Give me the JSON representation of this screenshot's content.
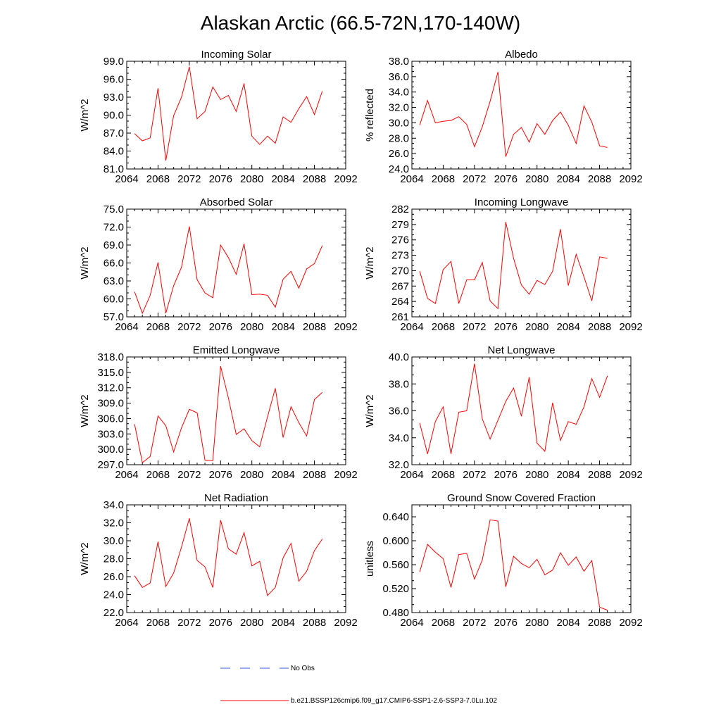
{
  "title": "Alaskan Arctic (66.5-72N,170-140W)",
  "legend": {
    "obs_label": "No Obs",
    "obs_color": "#3355dd",
    "model_label": "b.e21.BSSP126cmip6.f09_g17.CMIP6-SSP1-2.6-SSP3-7.0Lu.102",
    "model_color": "#ff0000"
  },
  "chart_data": [
    {
      "type": "line",
      "title": "Incoming Solar",
      "ylabel": "W/m^2",
      "xlim": [
        2064,
        2092
      ],
      "xticks": [
        "2064",
        "2068",
        "2072",
        "2076",
        "2080",
        "2084",
        "2088",
        "2092"
      ],
      "ylim": [
        81,
        99
      ],
      "yticks": [
        "81.0",
        "84.0",
        "87.0",
        "90.0",
        "93.0",
        "96.0",
        "99.0"
      ],
      "x": [
        2065,
        2066,
        2067,
        2068,
        2069,
        2070,
        2071,
        2072,
        2073,
        2074,
        2075,
        2076,
        2077,
        2078,
        2079,
        2080,
        2081,
        2082,
        2083,
        2084,
        2085,
        2086,
        2087,
        2088,
        2089
      ],
      "series": [
        {
          "values": [
            86.9,
            85.7,
            86.2,
            94.5,
            82.4,
            89.9,
            93.0,
            98.1,
            89.4,
            90.6,
            94.7,
            92.6,
            93.3,
            90.6,
            95.3,
            86.5,
            85.1,
            86.5,
            85.3,
            89.7,
            88.8,
            91.1,
            93.1,
            90.1,
            94.0
          ]
        }
      ]
    },
    {
      "type": "line",
      "title": "Albedo",
      "ylabel": "% reflected",
      "xlim": [
        2064,
        2092
      ],
      "xticks": [
        "2064",
        "2068",
        "2072",
        "2076",
        "2080",
        "2084",
        "2088",
        "2092"
      ],
      "ylim": [
        24,
        38
      ],
      "yticks": [
        "24.0",
        "26.0",
        "28.0",
        "30.0",
        "32.0",
        "34.0",
        "36.0",
        "38.0"
      ],
      "x": [
        2065,
        2066,
        2067,
        2068,
        2069,
        2070,
        2071,
        2072,
        2073,
        2074,
        2075,
        2076,
        2077,
        2078,
        2079,
        2080,
        2081,
        2082,
        2083,
        2084,
        2085,
        2086,
        2087,
        2088,
        2089
      ],
      "series": [
        {
          "values": [
            29.7,
            32.9,
            30.0,
            30.2,
            30.3,
            30.8,
            29.8,
            26.9,
            29.5,
            32.8,
            36.6,
            25.6,
            28.5,
            29.4,
            27.5,
            29.9,
            28.5,
            30.3,
            31.4,
            29.7,
            27.3,
            32.2,
            30.1,
            27.0,
            26.8
          ]
        }
      ]
    },
    {
      "type": "line",
      "title": "Absorbed Solar",
      "ylabel": "W/m^2",
      "xlim": [
        2064,
        2092
      ],
      "xticks": [
        "2064",
        "2068",
        "2072",
        "2076",
        "2080",
        "2084",
        "2088",
        "2092"
      ],
      "ylim": [
        57,
        75
      ],
      "yticks": [
        "57.0",
        "60.0",
        "63.0",
        "66.0",
        "69.0",
        "72.0",
        "75.0"
      ],
      "x": [
        2065,
        2066,
        2067,
        2068,
        2069,
        2070,
        2071,
        2072,
        2073,
        2074,
        2075,
        2076,
        2077,
        2078,
        2079,
        2080,
        2081,
        2082,
        2083,
        2084,
        2085,
        2086,
        2087,
        2088,
        2089
      ],
      "series": [
        {
          "values": [
            61.2,
            57.6,
            60.6,
            66.1,
            57.6,
            62.2,
            65.3,
            72.1,
            63.2,
            61.0,
            60.2,
            69.0,
            66.9,
            64.1,
            69.2,
            60.7,
            60.8,
            60.6,
            58.6,
            63.3,
            64.6,
            61.8,
            65.0,
            65.9,
            68.9
          ]
        }
      ]
    },
    {
      "type": "line",
      "title": "Incoming Longwave",
      "ylabel": "W/m^2",
      "xlim": [
        2064,
        2092
      ],
      "xticks": [
        "2064",
        "2068",
        "2072",
        "2076",
        "2080",
        "2084",
        "2088",
        "2092"
      ],
      "ylim": [
        261,
        282
      ],
      "yticks": [
        "261",
        "264",
        "267",
        "270",
        "273",
        "276",
        "279",
        "282"
      ],
      "x": [
        2065,
        2066,
        2067,
        2068,
        2069,
        2070,
        2071,
        2072,
        2073,
        2074,
        2075,
        2076,
        2077,
        2078,
        2079,
        2080,
        2081,
        2082,
        2083,
        2084,
        2085,
        2086,
        2087,
        2088,
        2089
      ],
      "series": [
        {
          "values": [
            269.9,
            264.6,
            263.6,
            270.2,
            271.8,
            263.6,
            268.2,
            268.2,
            271.6,
            264.1,
            262.6,
            279.5,
            272.4,
            267.2,
            265.4,
            268.1,
            267.3,
            269.9,
            278.1,
            267.1,
            273.2,
            268.8,
            264.1,
            272.7,
            272.4
          ]
        }
      ]
    },
    {
      "type": "line",
      "title": "Emitted Longwave",
      "ylabel": "W/m^2",
      "xlim": [
        2064,
        2092
      ],
      "xticks": [
        "2064",
        "2068",
        "2072",
        "2076",
        "2080",
        "2084",
        "2088",
        "2092"
      ],
      "ylim": [
        297,
        318
      ],
      "yticks": [
        "297.0",
        "300.0",
        "303.0",
        "306.0",
        "309.0",
        "312.0",
        "315.0",
        "318.0"
      ],
      "x": [
        2065,
        2066,
        2067,
        2068,
        2069,
        2070,
        2071,
        2072,
        2073,
        2074,
        2075,
        2076,
        2077,
        2078,
        2079,
        2080,
        2081,
        2082,
        2083,
        2084,
        2085,
        2086,
        2087,
        2088,
        2089
      ],
      "series": [
        {
          "values": [
            304.9,
            297.4,
            298.6,
            306.5,
            304.6,
            299.5,
            304.2,
            307.8,
            307.1,
            297.9,
            297.8,
            316.2,
            310.0,
            302.9,
            304.0,
            301.7,
            300.5,
            306.3,
            311.9,
            302.3,
            308.3,
            305.2,
            302.6,
            309.7,
            311.1
          ]
        }
      ]
    },
    {
      "type": "line",
      "title": "Net Longwave",
      "ylabel": "W/m^2",
      "xlim": [
        2064,
        2092
      ],
      "xticks": [
        "2064",
        "2068",
        "2072",
        "2076",
        "2080",
        "2084",
        "2088",
        "2092"
      ],
      "ylim": [
        32,
        40
      ],
      "yticks": [
        "32.0",
        "34.0",
        "36.0",
        "38.0",
        "40.0"
      ],
      "x": [
        2065,
        2066,
        2067,
        2068,
        2069,
        2070,
        2071,
        2072,
        2073,
        2074,
        2075,
        2076,
        2077,
        2078,
        2079,
        2080,
        2081,
        2082,
        2083,
        2084,
        2085,
        2086,
        2087,
        2088,
        2089
      ],
      "series": [
        {
          "values": [
            35.1,
            32.8,
            35.2,
            36.3,
            32.8,
            35.9,
            36.0,
            39.5,
            35.4,
            33.9,
            35.3,
            36.7,
            37.7,
            35.6,
            38.5,
            33.6,
            33.0,
            36.6,
            33.8,
            35.2,
            35.0,
            36.3,
            38.4,
            37.0,
            38.6
          ]
        }
      ]
    },
    {
      "type": "line",
      "title": "Net Radiation",
      "ylabel": "W/m^2",
      "xlim": [
        2064,
        2092
      ],
      "xticks": [
        "2064",
        "2068",
        "2072",
        "2076",
        "2080",
        "2084",
        "2088",
        "2092"
      ],
      "ylim": [
        22,
        34
      ],
      "yticks": [
        "22.0",
        "24.0",
        "26.0",
        "28.0",
        "30.0",
        "32.0",
        "34.0"
      ],
      "x": [
        2065,
        2066,
        2067,
        2068,
        2069,
        2070,
        2071,
        2072,
        2073,
        2074,
        2075,
        2076,
        2077,
        2078,
        2079,
        2080,
        2081,
        2082,
        2083,
        2084,
        2085,
        2086,
        2087,
        2088,
        2089
      ],
      "series": [
        {
          "values": [
            26.1,
            24.8,
            25.3,
            29.9,
            24.9,
            26.4,
            29.3,
            32.5,
            27.8,
            27.1,
            24.8,
            32.3,
            29.1,
            28.5,
            30.9,
            27.2,
            27.7,
            23.9,
            24.8,
            28.1,
            29.7,
            25.5,
            26.6,
            28.9,
            30.2
          ]
        }
      ]
    },
    {
      "type": "line",
      "title": "Ground Snow Covered Fraction",
      "ylabel": "unitless",
      "xlim": [
        2064,
        2092
      ],
      "xticks": [
        "2064",
        "2068",
        "2072",
        "2076",
        "2080",
        "2084",
        "2088",
        "2092"
      ],
      "ylim": [
        0.48,
        0.66
      ],
      "yticks": [
        "0.480",
        "0.520",
        "0.560",
        "0.600",
        "0.640"
      ],
      "x": [
        2065,
        2066,
        2067,
        2068,
        2069,
        2070,
        2071,
        2072,
        2073,
        2074,
        2075,
        2076,
        2077,
        2078,
        2079,
        2080,
        2081,
        2082,
        2083,
        2084,
        2085,
        2086,
        2087,
        2088,
        2089
      ],
      "series": [
        {
          "values": [
            0.548,
            0.594,
            0.581,
            0.57,
            0.522,
            0.577,
            0.579,
            0.536,
            0.568,
            0.635,
            0.633,
            0.523,
            0.574,
            0.562,
            0.555,
            0.569,
            0.543,
            0.551,
            0.58,
            0.559,
            0.573,
            0.549,
            0.567,
            0.489,
            0.484
          ]
        }
      ]
    }
  ]
}
